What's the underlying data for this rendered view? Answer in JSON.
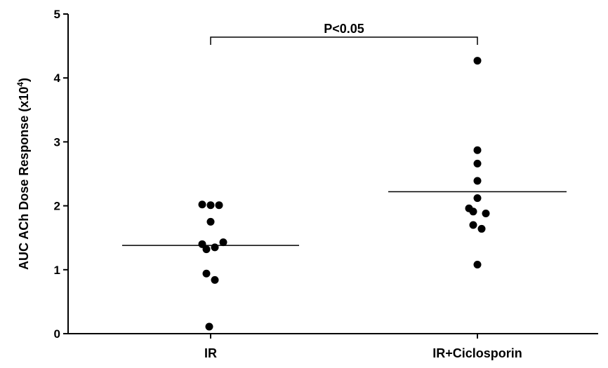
{
  "chart_data": {
    "type": "scatter",
    "ylabel": {
      "prefix": "AUC ACh Dose Response (x10",
      "exponent": "4",
      "suffix": ")"
    },
    "ylim": [
      0,
      5
    ],
    "yticks": [
      "0",
      "1",
      "2",
      "3",
      "4",
      "5"
    ],
    "categories": [
      "IR",
      "IR+Ciclosporin"
    ],
    "groups": [
      {
        "category": "IR",
        "mean": 1.38,
        "points": [
          {
            "dx": -1.2,
            "y": 2.02
          },
          {
            "dx": 0,
            "y": 2.01
          },
          {
            "dx": 1.2,
            "y": 2.01
          },
          {
            "dx": 0,
            "y": 1.75
          },
          {
            "dx": -1.2,
            "y": 1.4
          },
          {
            "dx": 1.8,
            "y": 1.43
          },
          {
            "dx": 0.6,
            "y": 1.35
          },
          {
            "dx": -0.6,
            "y": 1.32
          },
          {
            "dx": -0.6,
            "y": 0.94
          },
          {
            "dx": 0.6,
            "y": 0.84
          },
          {
            "dx": -0.2,
            "y": 0.11
          }
        ]
      },
      {
        "category": "IR+Ciclosporin",
        "mean": 2.22,
        "points": [
          {
            "dx": 0,
            "y": 4.27
          },
          {
            "dx": 0,
            "y": 2.87
          },
          {
            "dx": 0,
            "y": 2.66
          },
          {
            "dx": 0,
            "y": 2.39
          },
          {
            "dx": 0,
            "y": 2.12
          },
          {
            "dx": -1.2,
            "y": 1.96
          },
          {
            "dx": -0.6,
            "y": 1.91
          },
          {
            "dx": 1.2,
            "y": 1.88
          },
          {
            "dx": -0.6,
            "y": 1.7
          },
          {
            "dx": 0.6,
            "y": 1.64
          },
          {
            "dx": 0,
            "y": 1.08
          }
        ]
      }
    ],
    "annotation": {
      "text": "P<0.05",
      "between": [
        "IR",
        "IR+Ciclosporin"
      ]
    }
  }
}
